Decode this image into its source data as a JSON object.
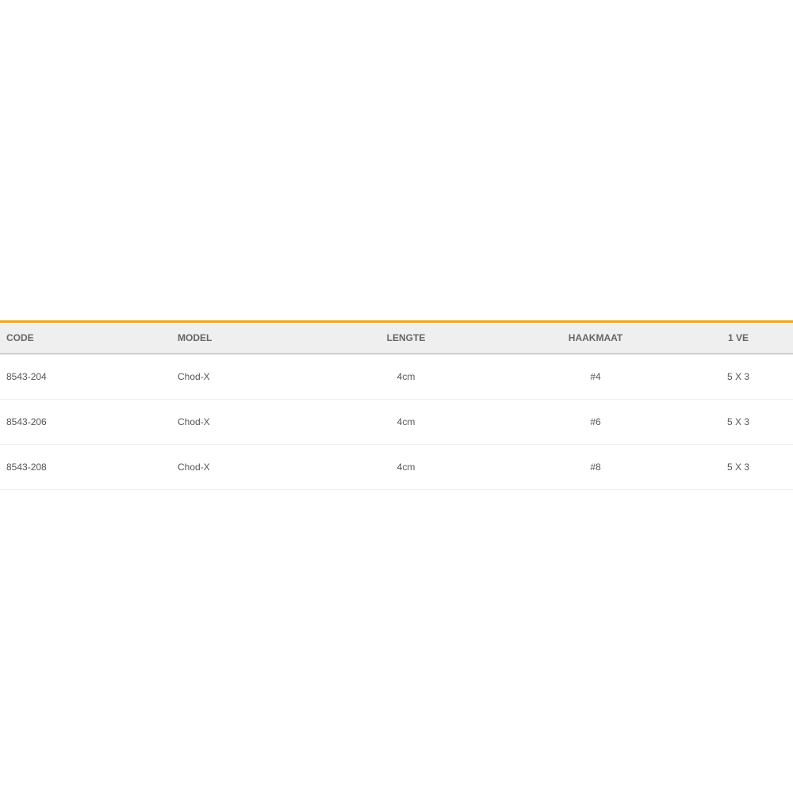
{
  "table": {
    "accent_color": "#f0a81c",
    "headers": [
      "CODE",
      "MODEL",
      "LENGTE",
      "HAAKMAAT",
      "1 VE"
    ],
    "rows": [
      [
        "8543-204",
        "Chod-X",
        "4cm",
        "#4",
        "5 X 3"
      ],
      [
        "8543-206",
        "Chod-X",
        "4cm",
        "#6",
        "5 X 3"
      ],
      [
        "8543-208",
        "Chod-X",
        "4cm",
        "#8",
        "5 X 3"
      ]
    ]
  }
}
